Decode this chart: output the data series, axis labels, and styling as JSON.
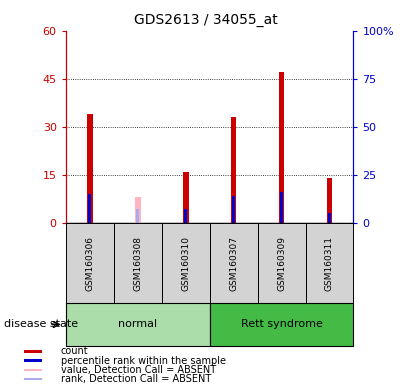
{
  "title": "GDS2613 / 34055_at",
  "samples": [
    "GSM160306",
    "GSM160308",
    "GSM160310",
    "GSM160307",
    "GSM160309",
    "GSM160311"
  ],
  "groups": [
    "normal",
    "normal",
    "normal",
    "Rett syndrome",
    "Rett syndrome",
    "Rett syndrome"
  ],
  "red_bars": [
    34,
    0,
    16,
    33,
    47,
    14
  ],
  "blue_bars": [
    15,
    0,
    7,
    14,
    16,
    5
  ],
  "pink_bars": [
    0,
    8,
    0,
    0,
    0,
    0
  ],
  "lightblue_bars": [
    0,
    7,
    0,
    0,
    0,
    0
  ],
  "absent_mask": [
    false,
    true,
    false,
    false,
    false,
    false
  ],
  "ylim_left": [
    0,
    60
  ],
  "ylim_right": [
    0,
    100
  ],
  "yticks_left": [
    0,
    15,
    30,
    45,
    60
  ],
  "yticks_right": [
    0,
    25,
    50,
    75,
    100
  ],
  "ytick_labels_left": [
    "0",
    "15",
    "30",
    "45",
    "60"
  ],
  "ytick_labels_right": [
    "0",
    "25",
    "50",
    "75",
    "100%"
  ],
  "left_axis_color": "#CC0000",
  "right_axis_color": "#0000CC",
  "bar_color_red": "#CC0000",
  "bar_color_blue": "#0000CC",
  "bar_color_pink": "#FFB6C1",
  "bar_color_lightblue": "#AAAAEE",
  "bg_color": "#D3D3D3",
  "normal_color": "#AADDAA",
  "rett_color": "#44BB44",
  "legend_items": [
    "count",
    "percentile rank within the sample",
    "value, Detection Call = ABSENT",
    "rank, Detection Call = ABSENT"
  ],
  "legend_colors": [
    "#CC0000",
    "#0000CC",
    "#FFB6C1",
    "#AAAAEE"
  ],
  "disease_state_label": "disease state"
}
